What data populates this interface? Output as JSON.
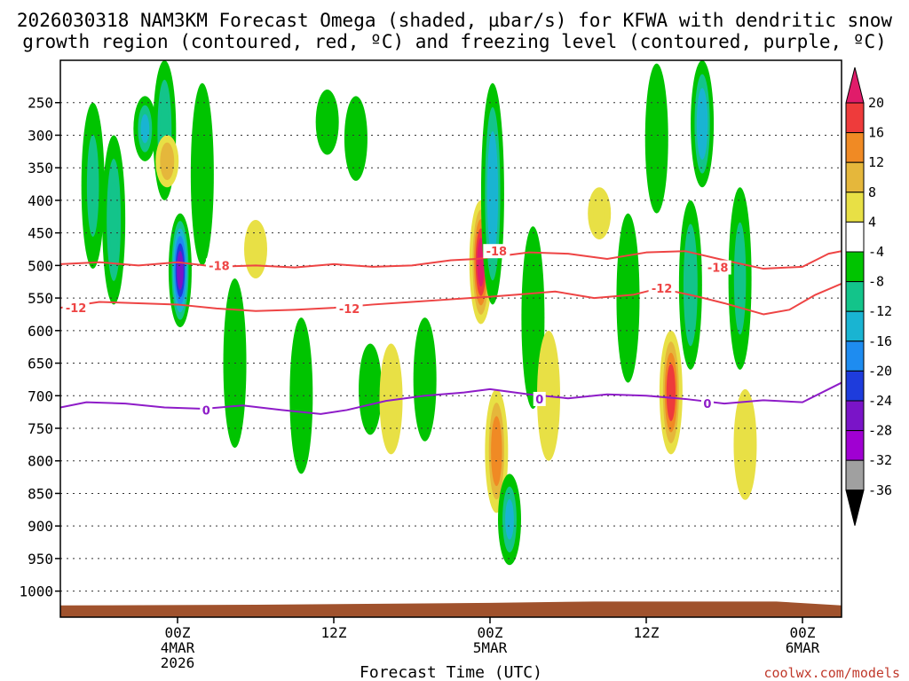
{
  "title": {
    "line1": "2026030318 NAM3KM Forecast Omega (shaded, µbar/s) for KFWA with dendritic snow",
    "line2": "growth region (contoured, red, ºC) and freezing level (contoured, purple, ºC)"
  },
  "credit": "coolwx.com/models",
  "chart_data": {
    "type": "time-height cross section (filled contour)",
    "title": "2026030318 NAM3KM Forecast Omega (shaded, µbar/s) for KFWA with dendritic snow growth region (contoured, red, ºC) and freezing level (contoured, purple, ºC)",
    "xlabel": "Forecast Time (UTC)",
    "ylabel": "",
    "x_unit": "hours from 2026-03-03 18Z",
    "xlim": [
      -3,
      57
    ],
    "ylim": [
      1040,
      185
    ],
    "y_unit": "hPa",
    "y_ticks": [
      250,
      300,
      350,
      400,
      450,
      500,
      550,
      600,
      650,
      700,
      750,
      800,
      850,
      900,
      950,
      1000
    ],
    "x_ticks": [
      {
        "hour": 6,
        "lines": [
          "00Z",
          "4MAR",
          "2026"
        ]
      },
      {
        "hour": 18,
        "lines": [
          "12Z"
        ]
      },
      {
        "hour": 30,
        "lines": [
          "00Z",
          "5MAR"
        ]
      },
      {
        "hour": 42,
        "lines": [
          "12Z"
        ]
      },
      {
        "hour": 54,
        "lines": [
          "00Z",
          "6MAR"
        ]
      }
    ],
    "colorbar": {
      "labels": [
        "20",
        "16",
        "12",
        "8",
        "4",
        "-4",
        "-8",
        "-12",
        "-16",
        "-20",
        "-24",
        "-28",
        "-32",
        "-36"
      ],
      "bins": [
        {
          "color": "#e01c6a",
          "range": "> 20"
        },
        {
          "color": "#ee3b3b",
          "range": "16 to 20"
        },
        {
          "color": "#f08a24",
          "range": "12 to 16"
        },
        {
          "color": "#e5b73b",
          "range": "8 to 12"
        },
        {
          "color": "#e8e045",
          "range": "4 to 8"
        },
        {
          "color": "#ffffff",
          "range": "-4 to 4"
        },
        {
          "color": "#00c400",
          "range": "-8 to -4"
        },
        {
          "color": "#13c48a",
          "range": "-12 to -8"
        },
        {
          "color": "#19b4d2",
          "range": "-16 to -12"
        },
        {
          "color": "#1e8cf0",
          "range": "-20 to -16"
        },
        {
          "color": "#1e3cdc",
          "range": "-24 to -20"
        },
        {
          "color": "#7a14c8",
          "range": "-28 to -24"
        },
        {
          "color": "#a000d2",
          "range": "-32 to -28"
        },
        {
          "color": "#a0a0a0",
          "range": "-36 to -32"
        },
        {
          "color": "#000000",
          "range": "< -36"
        }
      ]
    },
    "terrain": {
      "color": "#a0522d",
      "surface_hPa": [
        [
          -3,
          1022
        ],
        [
          12,
          1021
        ],
        [
          30,
          1018
        ],
        [
          38,
          1016
        ],
        [
          52,
          1016
        ],
        [
          57,
          1022
        ]
      ]
    },
    "isotherms": [
      {
        "name": "-18C",
        "value_label": "-18",
        "color": "#ee4444",
        "points": [
          [
            -3,
            498
          ],
          [
            0,
            495
          ],
          [
            3,
            500
          ],
          [
            6,
            495
          ],
          [
            9,
            502
          ],
          [
            12,
            500
          ],
          [
            15,
            503
          ],
          [
            18,
            498
          ],
          [
            21,
            502
          ],
          [
            24,
            500
          ],
          [
            27,
            492
          ],
          [
            29,
            490
          ],
          [
            31,
            485
          ],
          [
            33,
            480
          ],
          [
            36,
            482
          ],
          [
            39,
            490
          ],
          [
            42,
            480
          ],
          [
            45,
            478
          ],
          [
            48,
            492
          ],
          [
            51,
            505
          ],
          [
            54,
            502
          ],
          [
            56,
            482
          ],
          [
            57,
            478
          ]
        ],
        "labels": [
          [
            9.2,
            500
          ],
          [
            30.5,
            478
          ],
          [
            47.5,
            503
          ]
        ]
      },
      {
        "name": "-12C",
        "value_label": "-12",
        "color": "#ee4444",
        "points": [
          [
            -3,
            565
          ],
          [
            0,
            556
          ],
          [
            3,
            558
          ],
          [
            6,
            560
          ],
          [
            9,
            566
          ],
          [
            12,
            570
          ],
          [
            15,
            568
          ],
          [
            18,
            565
          ],
          [
            21,
            560
          ],
          [
            24,
            556
          ],
          [
            27,
            552
          ],
          [
            30,
            548
          ],
          [
            32,
            545
          ],
          [
            35,
            540
          ],
          [
            38,
            550
          ],
          [
            41,
            545
          ],
          [
            43,
            535
          ],
          [
            46,
            548
          ],
          [
            48,
            558
          ],
          [
            51,
            575
          ],
          [
            53,
            568
          ],
          [
            55,
            545
          ],
          [
            57,
            528
          ]
        ],
        "labels": [
          [
            -1.8,
            565
          ],
          [
            19.2,
            566
          ],
          [
            43.2,
            535
          ]
        ]
      },
      {
        "name": "freezing level",
        "value_label": "0",
        "color": "#8e1cc8",
        "points": [
          [
            -3,
            718
          ],
          [
            -1,
            710
          ],
          [
            2,
            712
          ],
          [
            5,
            718
          ],
          [
            8,
            720
          ],
          [
            11,
            715
          ],
          [
            14,
            722
          ],
          [
            17,
            728
          ],
          [
            19,
            722
          ],
          [
            22,
            708
          ],
          [
            25,
            700
          ],
          [
            28,
            695
          ],
          [
            30,
            690
          ],
          [
            33,
            698
          ],
          [
            36,
            704
          ],
          [
            39,
            698
          ],
          [
            42,
            700
          ],
          [
            45,
            705
          ],
          [
            48,
            712
          ],
          [
            51,
            707
          ],
          [
            54,
            710
          ],
          [
            56,
            690
          ],
          [
            57,
            680
          ]
        ],
        "labels": [
          [
            8.2,
            722
          ],
          [
            33.8,
            705
          ],
          [
            46.7,
            712
          ]
        ]
      }
    ],
    "omega_features": [
      {
        "hour": -0.5,
        "p_top": 250,
        "p_bottom": 505,
        "value": -8
      },
      {
        "hour": 1.1,
        "p_top": 300,
        "p_bottom": 560,
        "value": -10
      },
      {
        "hour": 3.5,
        "p_top": 240,
        "p_bottom": 340,
        "value": -12
      },
      {
        "hour": 5.0,
        "p_top": 185,
        "p_bottom": 400,
        "value": -9
      },
      {
        "hour": 6.2,
        "p_top": 420,
        "p_bottom": 595,
        "value": -26
      },
      {
        "hour": 7.9,
        "p_top": 220,
        "p_bottom": 500,
        "value": -7
      },
      {
        "hour": 5.2,
        "p_top": 300,
        "p_bottom": 380,
        "value": 10
      },
      {
        "hour": 10.4,
        "p_top": 520,
        "p_bottom": 780,
        "value": -5
      },
      {
        "hour": 12.0,
        "p_top": 430,
        "p_bottom": 520,
        "value": 5
      },
      {
        "hour": 15.5,
        "p_top": 580,
        "p_bottom": 820,
        "value": -6
      },
      {
        "hour": 17.5,
        "p_top": 230,
        "p_bottom": 330,
        "value": -6
      },
      {
        "hour": 19.7,
        "p_top": 240,
        "p_bottom": 370,
        "value": -7
      },
      {
        "hour": 20.8,
        "p_top": 620,
        "p_bottom": 760,
        "value": -5
      },
      {
        "hour": 22.4,
        "p_top": 620,
        "p_bottom": 790,
        "value": 5
      },
      {
        "hour": 25.0,
        "p_top": 580,
        "p_bottom": 770,
        "value": -6
      },
      {
        "hour": 29.3,
        "p_top": 400,
        "p_bottom": 590,
        "value": 22
      },
      {
        "hour": 30.2,
        "p_top": 220,
        "p_bottom": 560,
        "value": -14
      },
      {
        "hour": 30.5,
        "p_top": 690,
        "p_bottom": 880,
        "value": 14
      },
      {
        "hour": 31.5,
        "p_top": 820,
        "p_bottom": 960,
        "value": -12
      },
      {
        "hour": 33.3,
        "p_top": 440,
        "p_bottom": 720,
        "value": -7
      },
      {
        "hour": 34.5,
        "p_top": 600,
        "p_bottom": 800,
        "value": 5
      },
      {
        "hour": 38.4,
        "p_top": 380,
        "p_bottom": 460,
        "value": 6
      },
      {
        "hour": 40.6,
        "p_top": 420,
        "p_bottom": 680,
        "value": -7
      },
      {
        "hour": 42.8,
        "p_top": 190,
        "p_bottom": 420,
        "value": -6
      },
      {
        "hour": 43.9,
        "p_top": 600,
        "p_bottom": 790,
        "value": 18
      },
      {
        "hour": 45.4,
        "p_top": 400,
        "p_bottom": 660,
        "value": -10
      },
      {
        "hour": 46.3,
        "p_top": 185,
        "p_bottom": 380,
        "value": -15
      },
      {
        "hour": 49.2,
        "p_top": 380,
        "p_bottom": 660,
        "value": -8
      },
      {
        "hour": 49.6,
        "p_top": 690,
        "p_bottom": 860,
        "value": 6
      }
    ]
  }
}
